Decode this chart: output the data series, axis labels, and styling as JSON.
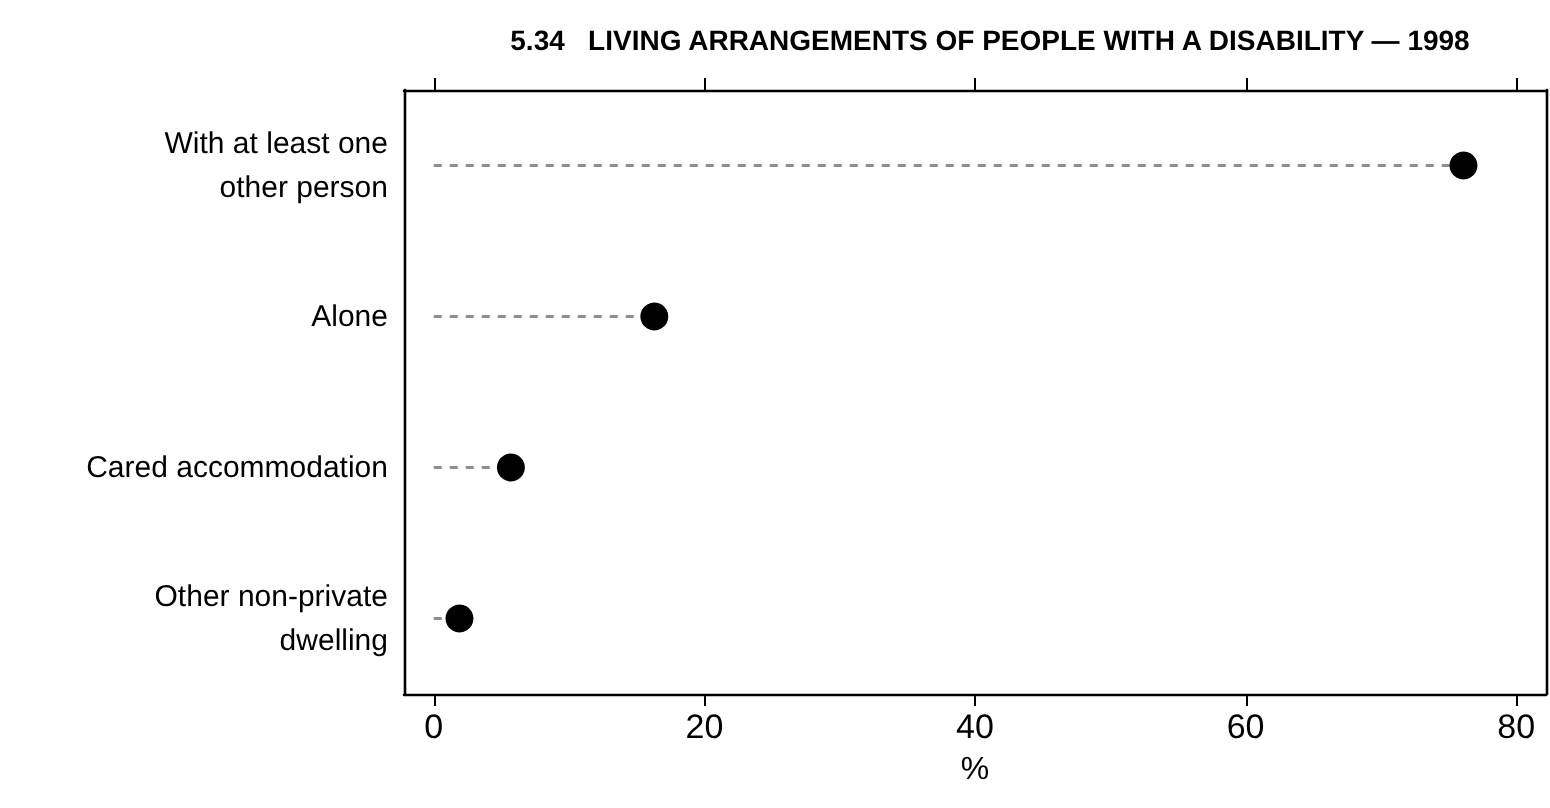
{
  "chart_data": {
    "type": "lollipop",
    "title": "5.34   LIVING ARRANGEMENTS OF PEOPLE WITH A DISABILITY — 1998",
    "xlabel": "%",
    "orientation": "horizontal",
    "categories": [
      "With at least one\nother person",
      "Alone",
      "Cared accommodation",
      "Other non-private\ndwelling"
    ],
    "values": [
      76.1,
      16.3,
      5.7,
      1.9
    ],
    "color": "#000000",
    "xlim": [
      -2.2,
      82.2
    ],
    "xticks": [
      0,
      20,
      40,
      60,
      80
    ],
    "marker": "circle",
    "line_style": "dashed",
    "grid": false
  }
}
